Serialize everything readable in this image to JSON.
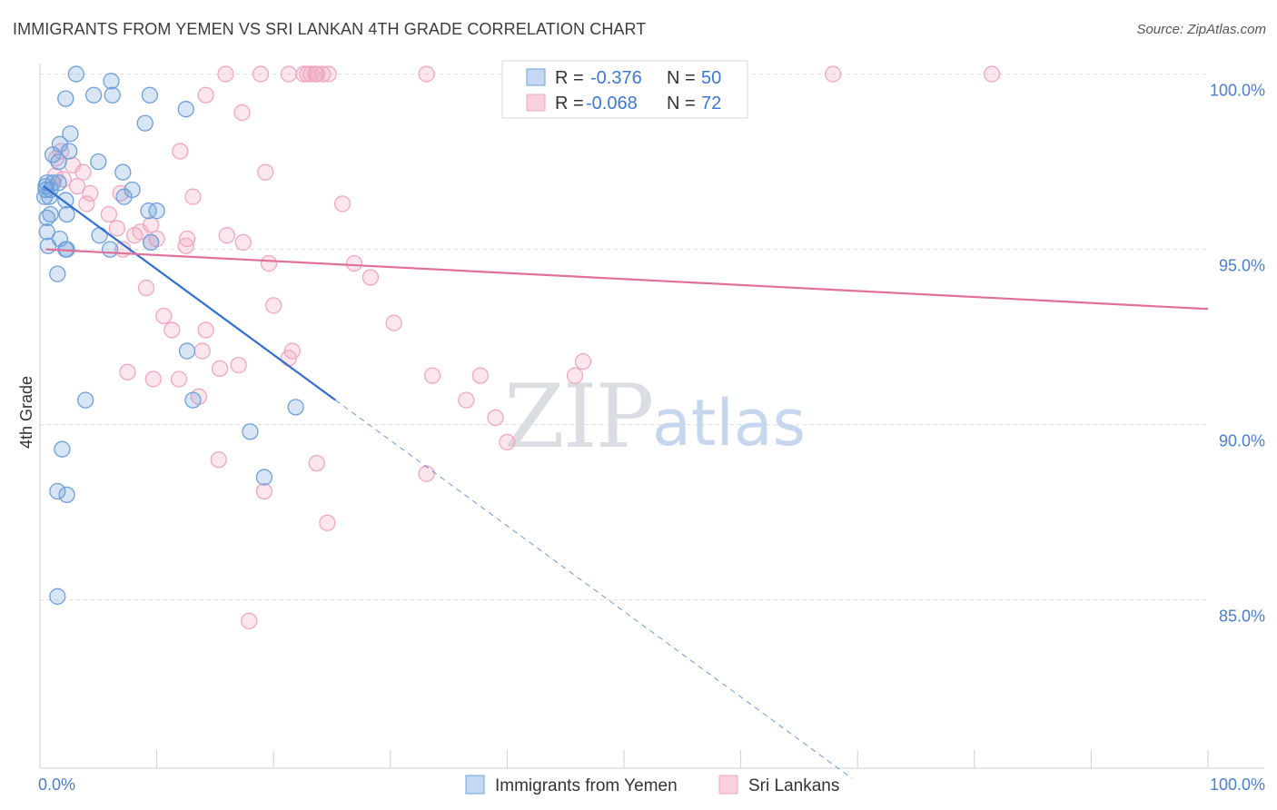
{
  "chart_data": {
    "type": "scatter",
    "title": "IMMIGRANTS FROM YEMEN VS SRI LANKAN 4TH GRADE CORRELATION CHART",
    "source": "Source: ZipAtlas.com",
    "xlabel": "",
    "ylabel": "4th Grade",
    "xlim": [
      0,
      100
    ],
    "ylim": [
      80.2,
      100.3
    ],
    "x_ticks": [
      {
        "value": 0,
        "label": "0.0%"
      },
      {
        "value": 100,
        "label": "100.0%"
      }
    ],
    "y_ticks": [
      {
        "value": 100,
        "label": "100.0%"
      },
      {
        "value": 95,
        "label": "95.0%"
      },
      {
        "value": 90,
        "label": "90.0%"
      },
      {
        "value": 85,
        "label": "85.0%"
      }
    ],
    "series": [
      {
        "name": "Immigrants from Yemen",
        "color": "#6fa0dc",
        "line_color": "#2f6fd0",
        "R": "-0.376",
        "N": "50",
        "trend": {
          "x0": 0.3,
          "y0": 96.8,
          "x1": 25.3,
          "y1": 90.7,
          "dash_to_x": 69.5
        },
        "x": [
          3.1,
          6.2,
          4.6,
          2.2,
          6.1,
          9.0,
          12.5,
          9.4,
          2.6,
          1.7,
          2.5,
          1.1,
          1.6,
          7.1,
          5.0,
          7.9,
          7.2,
          0.6,
          1.6,
          0.5,
          0.4,
          2.2,
          0.9,
          10.0,
          0.6,
          0.6,
          1.7,
          2.2,
          2.3,
          0.7,
          1.5,
          5.1,
          6.0,
          9.5,
          9.3,
          12.6,
          13.1,
          3.9,
          21.9,
          18.0,
          1.9,
          1.5,
          2.3,
          19.2,
          1.5,
          0.9,
          1.1,
          0.8,
          2.3,
          0.5
        ],
        "y": [
          100.0,
          99.4,
          99.4,
          99.3,
          99.8,
          98.6,
          99.0,
          99.4,
          98.3,
          98.0,
          97.8,
          97.7,
          97.5,
          97.2,
          97.5,
          96.7,
          96.5,
          96.9,
          96.9,
          96.7,
          96.5,
          96.4,
          96.0,
          96.1,
          95.9,
          95.5,
          95.3,
          95.0,
          95.0,
          95.1,
          94.3,
          95.4,
          95.0,
          95.2,
          96.1,
          92.1,
          90.7,
          90.7,
          90.5,
          89.8,
          89.3,
          88.1,
          88.0,
          88.5,
          85.1,
          96.7,
          96.9,
          96.5,
          96.0,
          96.8
        ]
      },
      {
        "name": "Sri Lankans",
        "color": "#f2a7bf",
        "line_color": "#e0709a",
        "R": "-0.068",
        "N": "72",
        "trend": {
          "x0": 0.5,
          "y0": 95.0,
          "x1": 100.0,
          "y1": 93.3
        },
        "x": [
          18.9,
          21.3,
          22.6,
          22.9,
          23.2,
          23.6,
          23.7,
          24.2,
          24.7,
          33.1,
          67.9,
          81.5,
          15.9,
          14.2,
          1.4,
          1.8,
          2.8,
          12.0,
          2.0,
          1.3,
          3.7,
          3.2,
          19.3,
          4.3,
          4.0,
          6.9,
          25.9,
          13.1,
          5.9,
          8.1,
          8.6,
          12.6,
          6.6,
          16.0,
          17.4,
          7.1,
          9.5,
          10.0,
          12.5,
          9.5,
          19.6,
          26.9,
          28.3,
          9.1,
          10.6,
          11.3,
          7.5,
          11.9,
          15.4,
          20.0,
          30.3,
          14.2,
          17.0,
          21.3,
          21.6,
          9.7,
          24.6,
          33.1,
          36.5,
          37.7,
          39.0,
          40.0,
          45.8,
          46.5,
          13.6,
          13.9,
          19.2,
          15.3,
          23.7,
          17.9,
          33.6,
          17.3
        ],
        "y": [
          100.0,
          100.0,
          100.0,
          100.0,
          100.0,
          100.0,
          100.0,
          100.0,
          100.0,
          100.0,
          100.0,
          100.0,
          100.0,
          99.4,
          97.6,
          97.8,
          97.4,
          97.8,
          97.0,
          97.1,
          97.2,
          96.8,
          97.2,
          96.6,
          96.3,
          96.6,
          96.3,
          96.5,
          96.0,
          95.4,
          95.5,
          95.3,
          95.6,
          95.4,
          95.2,
          95.0,
          95.7,
          95.3,
          95.1,
          95.2,
          94.6,
          94.6,
          94.2,
          93.9,
          93.1,
          92.7,
          91.5,
          91.3,
          91.6,
          93.4,
          92.9,
          92.7,
          91.7,
          91.9,
          92.1,
          91.3,
          87.2,
          88.6,
          90.7,
          91.4,
          90.2,
          89.5,
          91.4,
          91.8,
          90.8,
          92.1,
          88.1,
          89.0,
          88.9,
          84.4,
          91.4,
          98.9
        ]
      }
    ],
    "watermark": {
      "zip": "ZIP",
      "atlas": "atlas"
    },
    "legend": {
      "r_label": "R =",
      "n_label": "N ="
    }
  }
}
